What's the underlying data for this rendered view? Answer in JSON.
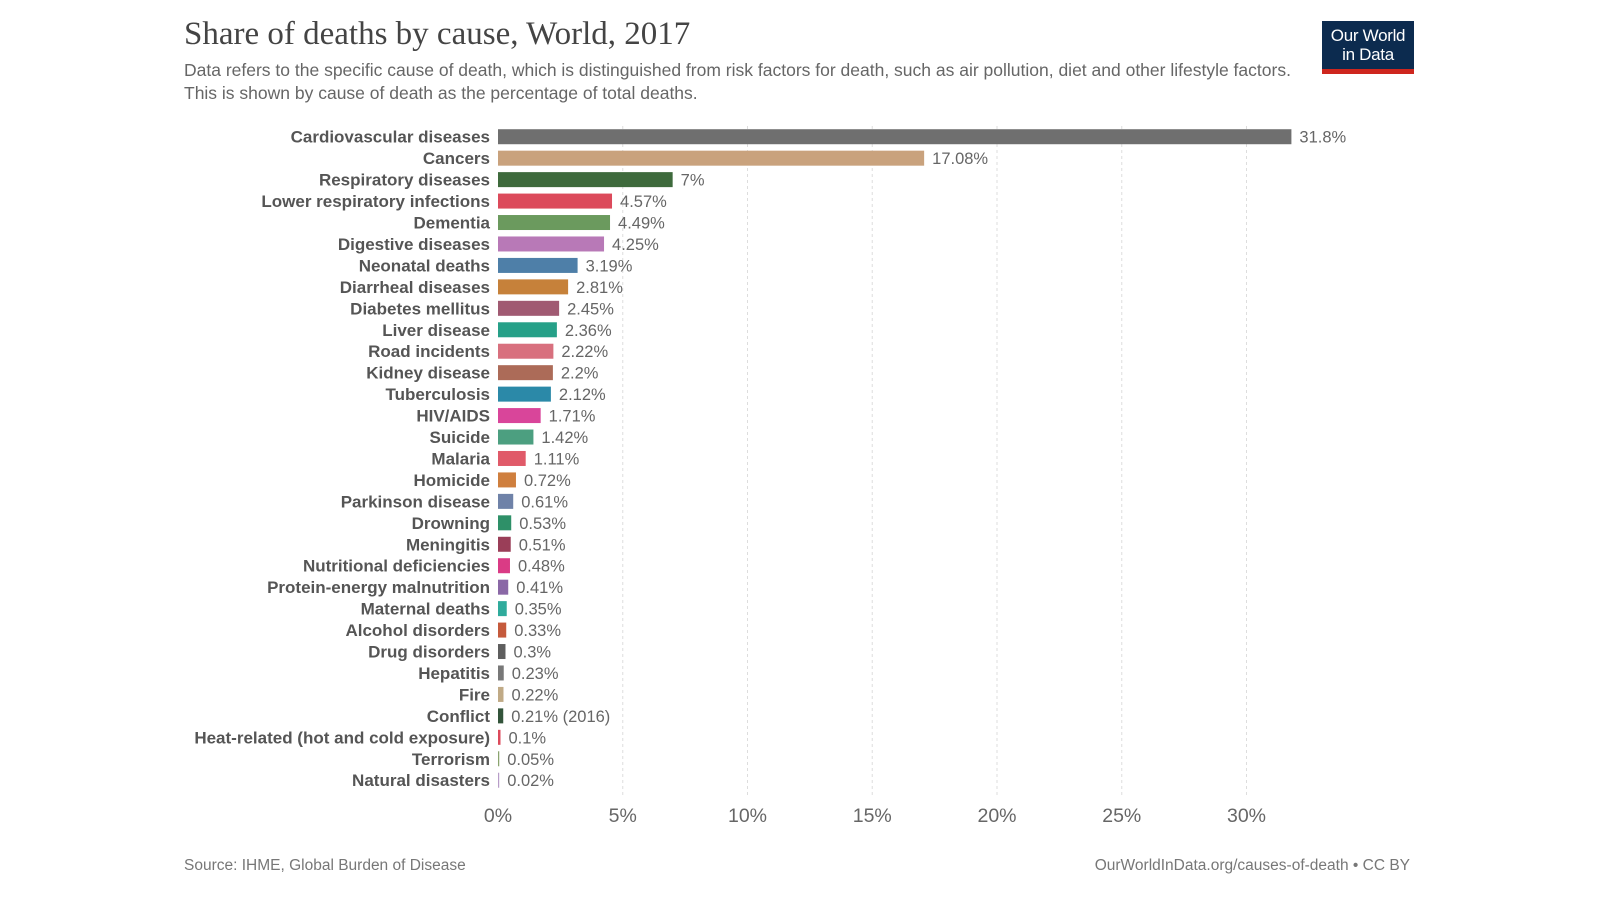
{
  "header": {
    "title": "Share of deaths by cause, World, 2017",
    "subtitle": "Data refers to the specific cause of death, which is distinguished from risk factors for death, such as air pollution, diet and other lifestyle factors. This is shown by cause of death as the percentage of total deaths."
  },
  "logo": {
    "line1": "Our World",
    "line2": "in Data",
    "bg_color": "#0c2b4f",
    "stripe_color": "#ce261e"
  },
  "footer": {
    "source": "Source: IHME, Global Burden of Disease",
    "url": "OurWorldInData.org/causes-of-death • CC BY"
  },
  "chart_data": {
    "type": "bar",
    "orientation": "horizontal",
    "title": "Share of deaths by cause, World, 2017",
    "xlim": [
      0,
      32
    ],
    "ticks": [
      0,
      5,
      10,
      15,
      20,
      25,
      30
    ],
    "tick_labels": [
      "0%",
      "5%",
      "10%",
      "15%",
      "20%",
      "25%",
      "30%"
    ],
    "grid": "vertical dashed",
    "categories": [
      "Cardiovascular diseases",
      "Cancers",
      "Respiratory diseases",
      "Lower respiratory infections",
      "Dementia",
      "Digestive diseases",
      "Neonatal deaths",
      "Diarrheal diseases",
      "Diabetes mellitus",
      "Liver disease",
      "Road incidents",
      "Kidney disease",
      "Tuberculosis",
      "HIV/AIDS",
      "Suicide",
      "Malaria",
      "Homicide",
      "Parkinson disease",
      "Drowning",
      "Meningitis",
      "Nutritional deficiencies",
      "Protein-energy malnutrition",
      "Maternal deaths",
      "Alcohol disorders",
      "Drug disorders",
      "Hepatitis",
      "Fire",
      "Conflict",
      "Heat-related (hot and cold exposure)",
      "Terrorism",
      "Natural disasters"
    ],
    "values": [
      31.8,
      17.08,
      7,
      4.57,
      4.49,
      4.25,
      3.19,
      2.81,
      2.45,
      2.36,
      2.22,
      2.2,
      2.12,
      1.71,
      1.42,
      1.11,
      0.72,
      0.61,
      0.53,
      0.51,
      0.48,
      0.41,
      0.35,
      0.33,
      0.3,
      0.23,
      0.22,
      0.21,
      0.1,
      0.05,
      0.02
    ],
    "value_labels": [
      "31.8%",
      "17.08%",
      "7%",
      "4.57%",
      "4.49%",
      "4.25%",
      "3.19%",
      "2.81%",
      "2.45%",
      "2.36%",
      "2.22%",
      "2.2%",
      "2.12%",
      "1.71%",
      "1.42%",
      "1.11%",
      "0.72%",
      "0.61%",
      "0.53%",
      "0.51%",
      "0.48%",
      "0.41%",
      "0.35%",
      "0.33%",
      "0.3%",
      "0.23%",
      "0.22%",
      "0.21% (2016)",
      "0.1%",
      "0.05%",
      "0.02%"
    ],
    "colors": [
      "#6f6f6f",
      "#c9a27d",
      "#3e6a3c",
      "#dc4a5b",
      "#6b9a5e",
      "#b879b7",
      "#4e7fa8",
      "#c6813a",
      "#a05a72",
      "#26a088",
      "#d8707e",
      "#ac6b58",
      "#2b89a8",
      "#d9459a",
      "#4c9f80",
      "#e05a69",
      "#cf7f3e",
      "#6f82a8",
      "#2e9068",
      "#9a3e58",
      "#da3b85",
      "#8a68a6",
      "#2fab9c",
      "#c55a3c",
      "#5e5e5e",
      "#787878",
      "#c0aa86",
      "#33543a",
      "#dc4a5b",
      "#8aa46e",
      "#b79cc8"
    ]
  }
}
